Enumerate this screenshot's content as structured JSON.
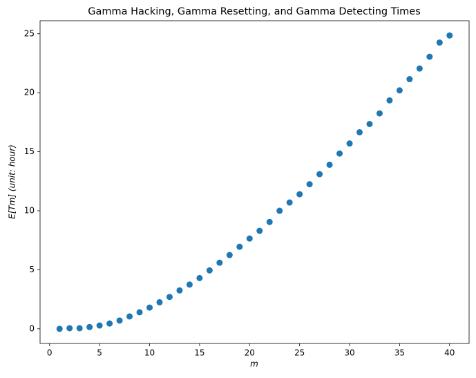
{
  "chart_data": {
    "type": "scatter",
    "title": "Gamma Hacking, Gamma Resetting, and Gamma Detecting Times",
    "xlabel": "m",
    "ylabel": "E[Tm] (unit: hour)",
    "x": [
      1,
      2,
      3,
      4,
      5,
      6,
      7,
      8,
      9,
      10,
      11,
      12,
      13,
      14,
      15,
      16,
      17,
      18,
      19,
      20,
      21,
      22,
      23,
      24,
      25,
      26,
      27,
      28,
      29,
      30,
      31,
      32,
      33,
      34,
      35,
      36,
      37,
      38,
      39,
      40
    ],
    "series": [
      {
        "color": "#1f77b4",
        "values": [
          0,
          0.05,
          0.05,
          0.15,
          0.28,
          0.45,
          0.7,
          1.05,
          1.4,
          1.8,
          2.25,
          2.7,
          3.25,
          3.75,
          4.3,
          4.95,
          5.6,
          6.25,
          6.95,
          7.65,
          8.3,
          9.05,
          10.0,
          10.7,
          11.4,
          12.25,
          13.1,
          13.9,
          14.85,
          15.7,
          16.65,
          17.35,
          18.25,
          19.35,
          20.2,
          21.15,
          22.05,
          23.05,
          24.25,
          24.85
        ]
      }
    ],
    "xlim": [
      -0.95,
      41.95
    ],
    "ylim": [
      -1.24,
      26.1
    ],
    "xticks": [
      0,
      5,
      10,
      15,
      20,
      25,
      30,
      35,
      40
    ],
    "yticks": [
      0,
      5,
      10,
      15,
      20,
      25
    ]
  }
}
